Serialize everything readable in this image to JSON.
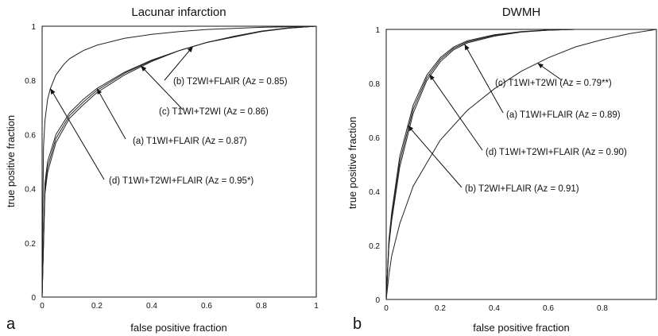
{
  "chart_data": [
    {
      "type": "line",
      "panel_letter": "a",
      "title": "Lacunar infarction",
      "xlabel": "false positive fraction",
      "ylabel": "true positive fraction",
      "xlim": [
        0,
        1
      ],
      "ylim": [
        0,
        1
      ],
      "xticks": [
        "0",
        "0.2",
        "0.4",
        "0.6",
        "0.8",
        "1"
      ],
      "yticks": [
        "0",
        "0.2",
        "0.4",
        "0.6",
        "0.8",
        "1"
      ],
      "series": [
        {
          "name": "(a) T1WI+FLAIR (Az = 0.87)",
          "x": [
            0,
            0.01,
            0.02,
            0.05,
            0.1,
            0.15,
            0.2,
            0.3,
            0.4,
            0.5,
            0.6,
            0.7,
            0.8,
            0.9,
            1
          ],
          "y": [
            0,
            0.42,
            0.5,
            0.6,
            0.68,
            0.73,
            0.77,
            0.83,
            0.875,
            0.91,
            0.94,
            0.96,
            0.98,
            0.993,
            1
          ]
        },
        {
          "name": "(b) T2WI+FLAIR (Az = 0.85)",
          "x": [
            0,
            0.01,
            0.02,
            0.05,
            0.1,
            0.15,
            0.2,
            0.3,
            0.4,
            0.5,
            0.6,
            0.7,
            0.8,
            0.9,
            1
          ],
          "y": [
            0,
            0.38,
            0.46,
            0.57,
            0.66,
            0.71,
            0.755,
            0.82,
            0.87,
            0.91,
            0.94,
            0.963,
            0.982,
            0.994,
            1
          ]
        },
        {
          "name": "(c) T1WI+T2WI (Az = 0.86)",
          "x": [
            0,
            0.01,
            0.02,
            0.05,
            0.1,
            0.15,
            0.2,
            0.3,
            0.4,
            0.5,
            0.6,
            0.7,
            0.8,
            0.9,
            1
          ],
          "y": [
            0,
            0.4,
            0.48,
            0.585,
            0.67,
            0.72,
            0.763,
            0.826,
            0.873,
            0.91,
            0.94,
            0.962,
            0.981,
            0.993,
            1
          ]
        },
        {
          "name": "(d) T1WI+T2WI+FLAIR (Az = 0.95*)",
          "x": [
            0,
            0.005,
            0.01,
            0.02,
            0.03,
            0.05,
            0.08,
            0.1,
            0.15,
            0.2,
            0.3,
            0.4,
            0.5,
            0.6,
            0.8,
            1
          ],
          "y": [
            0,
            0.55,
            0.65,
            0.73,
            0.77,
            0.82,
            0.86,
            0.88,
            0.91,
            0.93,
            0.955,
            0.97,
            0.98,
            0.988,
            0.996,
            1
          ]
        }
      ],
      "annotations": [
        {
          "text": "(b) T2WI+FLAIR (Az = 0.85)",
          "series": 1
        },
        {
          "text": "(c) T1WI+T2WI (Az = 0.86)",
          "series": 2
        },
        {
          "text": "(a) T1WI+FLAIR (Az = 0.87)",
          "series": 0
        },
        {
          "text": "(d) T1WI+T2WI+FLAIR (Az = 0.95*)",
          "series": 3
        }
      ]
    },
    {
      "type": "line",
      "panel_letter": "b",
      "title": "DWMH",
      "xlabel": "false positive fraction",
      "ylabel": "true positive fraction",
      "xlim": [
        0,
        1
      ],
      "ylim": [
        0,
        1
      ],
      "xticks": [
        "0",
        "0.2",
        "0.4",
        "0.6",
        "0.8"
      ],
      "yticks": [
        "0",
        "0.2",
        "0.4",
        "0.6",
        "0.8",
        "1"
      ],
      "series": [
        {
          "name": "(a) T1WI+FLAIR (Az = 0.89)",
          "x": [
            0,
            0.01,
            0.02,
            0.05,
            0.1,
            0.15,
            0.2,
            0.25,
            0.3,
            0.4,
            0.5,
            0.6,
            0.7,
            1
          ],
          "y": [
            0,
            0.2,
            0.29,
            0.49,
            0.69,
            0.81,
            0.88,
            0.925,
            0.95,
            0.975,
            0.99,
            0.997,
            1,
            1
          ]
        },
        {
          "name": "(b) T2WI+FLAIR (Az = 0.91)",
          "x": [
            0,
            0.01,
            0.02,
            0.05,
            0.1,
            0.15,
            0.2,
            0.25,
            0.3,
            0.4,
            0.5,
            0.6,
            0.7,
            1
          ],
          "y": [
            0,
            0.22,
            0.32,
            0.53,
            0.72,
            0.83,
            0.895,
            0.935,
            0.958,
            0.98,
            0.992,
            0.998,
            1,
            1
          ]
        },
        {
          "name": "(c) T1WI+T2WI (Az = 0.79**)",
          "x": [
            0,
            0.01,
            0.02,
            0.05,
            0.1,
            0.2,
            0.3,
            0.4,
            0.5,
            0.6,
            0.7,
            0.8,
            0.9,
            1
          ],
          "y": [
            0,
            0.09,
            0.16,
            0.28,
            0.42,
            0.59,
            0.7,
            0.78,
            0.845,
            0.895,
            0.935,
            0.962,
            0.984,
            1
          ]
        },
        {
          "name": "(d) T1WI+T2WI+FLAIR (Az = 0.90)",
          "x": [
            0,
            0.01,
            0.02,
            0.05,
            0.1,
            0.15,
            0.2,
            0.25,
            0.3,
            0.4,
            0.5,
            0.6,
            0.7,
            1
          ],
          "y": [
            0,
            0.21,
            0.305,
            0.51,
            0.705,
            0.82,
            0.888,
            0.93,
            0.954,
            0.978,
            0.991,
            0.997,
            1,
            1
          ]
        }
      ],
      "annotations": [
        {
          "text": "(c) T1WI+T2WI (Az = 0.79**)",
          "series": 2
        },
        {
          "text": "(a) T1WI+FLAIR (Az = 0.89)",
          "series": 0
        },
        {
          "text": "(d) T1WI+T2WI+FLAIR (Az = 0.90)",
          "series": 3
        },
        {
          "text": "(b) T2WI+FLAIR (Az = 0.91)",
          "series": 1
        }
      ]
    }
  ]
}
